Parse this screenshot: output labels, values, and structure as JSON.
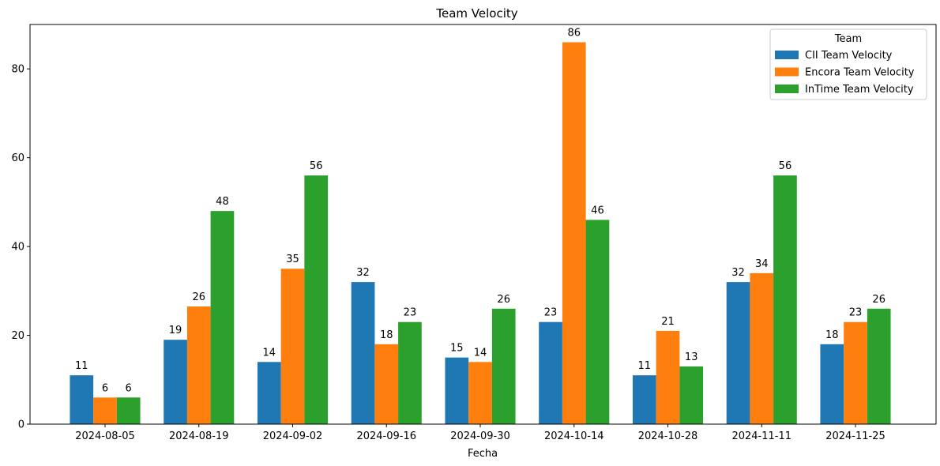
{
  "chart_data": {
    "type": "bar",
    "title": "Team Velocity",
    "xlabel": "Fecha",
    "ylabel": "",
    "ylim": [
      0,
      90
    ],
    "yticks": [
      0,
      20,
      40,
      60,
      80
    ],
    "categories": [
      "2024-08-05",
      "2024-08-19",
      "2024-09-02",
      "2024-09-16",
      "2024-09-30",
      "2024-10-14",
      "2024-10-28",
      "2024-11-11",
      "2024-11-25"
    ],
    "series": [
      {
        "name": "CII Team Velocity",
        "color": "#1f77b4",
        "values": [
          11,
          19,
          14,
          32,
          15,
          23,
          11,
          32,
          18
        ],
        "labels": [
          "11",
          "19",
          "14",
          "32",
          "15",
          "23",
          "11",
          "32",
          "18"
        ]
      },
      {
        "name": "Encora Team Velocity",
        "color": "#ff7f0e",
        "values": [
          6,
          26.5,
          35,
          18,
          14,
          86,
          21,
          34,
          23
        ],
        "labels": [
          "6",
          "26",
          "35",
          "18",
          "14",
          "86",
          "21",
          "34",
          "23"
        ]
      },
      {
        "name": "InTime Team Velocity",
        "color": "#2ca02c",
        "values": [
          6,
          48,
          56,
          23,
          26,
          46,
          13,
          56,
          26
        ],
        "labels": [
          "6",
          "48",
          "56",
          "23",
          "26",
          "46",
          "13",
          "56",
          "26"
        ]
      }
    ],
    "legend": {
      "title": "Team",
      "position": "top-right"
    },
    "grid": false
  }
}
